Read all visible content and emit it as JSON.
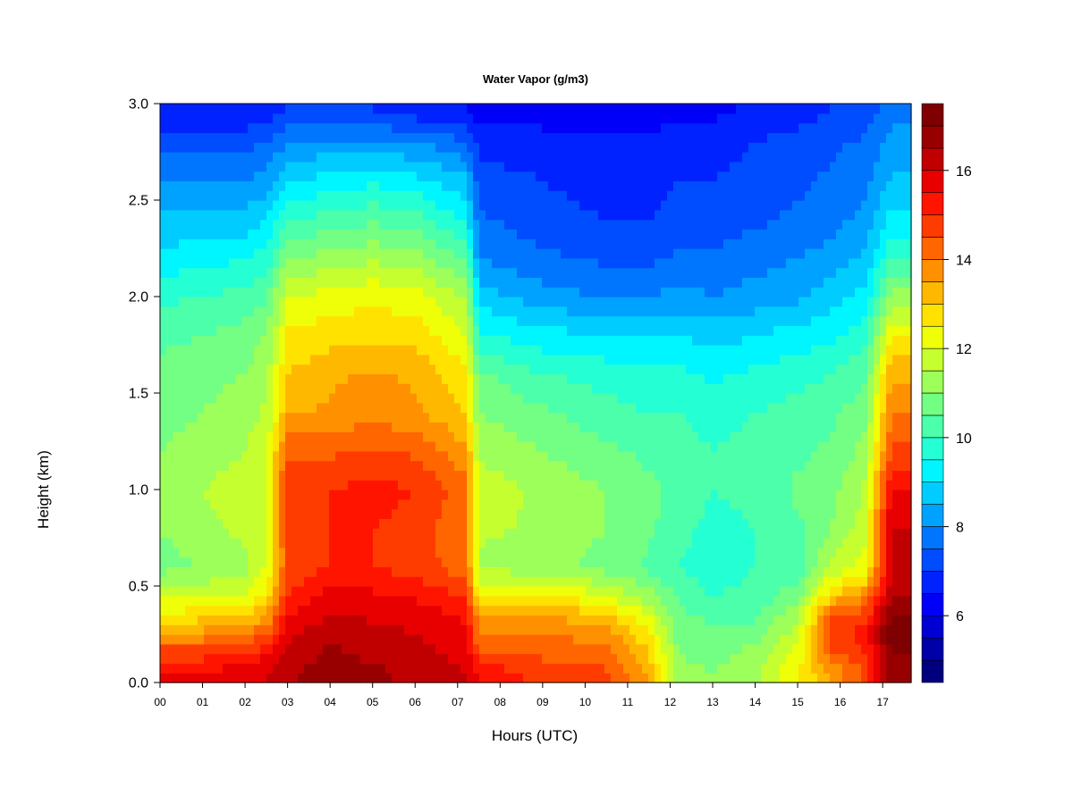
{
  "chart_data": {
    "type": "heatmap",
    "title": "Water Vapor (g/m3)",
    "xlabel": "Hours (UTC)",
    "ylabel": "Height (km)",
    "x_unit": "hours UTC",
    "y_unit": "km",
    "xlim": [
      0,
      17.67
    ],
    "ylim": [
      0,
      3.0
    ],
    "x_ticks": [
      0,
      1,
      2,
      3,
      4,
      5,
      6,
      7,
      8,
      9,
      10,
      11,
      12,
      13,
      14,
      15,
      16,
      17
    ],
    "x_tick_labels": [
      "00",
      "01",
      "02",
      "03",
      "04",
      "05",
      "06",
      "07",
      "08",
      "09",
      "10",
      "11",
      "12",
      "13",
      "14",
      "15",
      "16",
      "17"
    ],
    "y_ticks": [
      0.0,
      0.5,
      1.0,
      1.5,
      2.0,
      2.5,
      3.0
    ],
    "y_tick_labels": [
      "0.0",
      "0.5",
      "1.0",
      "1.5",
      "2.0",
      "2.5",
      "3.0"
    ],
    "colorbar": {
      "range": [
        4.5,
        17.5
      ],
      "step": 0.5,
      "tick_values": [
        6,
        8,
        10,
        12,
        14,
        16
      ],
      "tick_labels": [
        "6",
        "8",
        "10",
        "12",
        "14",
        "16"
      ],
      "colors": [
        "#00007f",
        "#0000a8",
        "#0000d2",
        "#0000f8",
        "#0022ff",
        "#004cff",
        "#0076ff",
        "#00a2ff",
        "#00ccff",
        "#00f6ff",
        "#24ffd3",
        "#4cffaa",
        "#72ff84",
        "#9cff5a",
        "#c6ff30",
        "#eeff08",
        "#ffe200",
        "#ffb800",
        "#ff9000",
        "#ff6600",
        "#ff3c00",
        "#ff1400",
        "#e80000",
        "#c00000",
        "#980000",
        "#7f0000"
      ]
    },
    "heights_km": [
      0.05,
      0.15,
      0.25,
      0.35,
      0.45,
      0.6,
      0.8,
      1.0,
      1.2,
      1.4,
      1.6,
      1.8,
      2.0,
      2.2,
      2.4,
      2.6,
      2.8,
      2.95
    ],
    "profiles": [
      {
        "hour": 0.0,
        "values": [
          15.5,
          14.8,
          13.6,
          12.6,
          11.8,
          10.8,
          11.0,
          11.2,
          11.0,
          10.8,
          10.6,
          10.4,
          9.9,
          9.2,
          8.6,
          8.0,
          7.3,
          6.5
        ]
      },
      {
        "hour": 1.0,
        "values": [
          15.6,
          14.8,
          13.7,
          12.8,
          11.9,
          11.0,
          11.4,
          11.5,
          11.3,
          11.0,
          10.8,
          10.5,
          10.0,
          9.3,
          8.6,
          8.0,
          7.4,
          6.6
        ]
      },
      {
        "hour": 2.0,
        "values": [
          15.8,
          15.0,
          14.0,
          13.0,
          12.0,
          11.4,
          11.6,
          11.7,
          11.5,
          11.3,
          11.0,
          10.7,
          10.2,
          9.5,
          8.7,
          8.0,
          7.3,
          6.6
        ]
      },
      {
        "hour": 2.5,
        "values": [
          16.0,
          15.4,
          14.5,
          13.4,
          12.6,
          12.0,
          12.0,
          12.0,
          11.8,
          11.6,
          11.4,
          11.0,
          10.4,
          9.7,
          9.0,
          8.2,
          7.5,
          6.8
        ]
      },
      {
        "hour": 3.0,
        "values": [
          16.4,
          16.2,
          15.9,
          15.4,
          15.0,
          14.6,
          14.8,
          15.0,
          14.4,
          13.4,
          13.0,
          12.6,
          12.0,
          11.0,
          10.0,
          9.0,
          8.0,
          7.0
        ]
      },
      {
        "hour": 4.0,
        "values": [
          16.8,
          16.6,
          16.4,
          16.0,
          15.8,
          15.0,
          15.0,
          15.0,
          14.4,
          13.6,
          13.4,
          12.8,
          12.2,
          11.2,
          10.2,
          9.2,
          8.2,
          7.0
        ]
      },
      {
        "hour": 5.0,
        "values": [
          16.6,
          16.4,
          16.2,
          15.9,
          15.6,
          15.0,
          15.0,
          15.2,
          14.6,
          13.8,
          13.6,
          12.8,
          12.4,
          11.4,
          10.4,
          9.4,
          8.2,
          7.0
        ]
      },
      {
        "hour": 6.0,
        "values": [
          16.4,
          16.2,
          16.0,
          15.8,
          15.4,
          14.8,
          14.8,
          15.0,
          14.4,
          13.6,
          13.4,
          12.8,
          12.2,
          11.2,
          10.2,
          9.2,
          8.0,
          6.8
        ]
      },
      {
        "hour": 7.2,
        "values": [
          16.0,
          15.8,
          15.6,
          15.4,
          15.0,
          14.2,
          14.0,
          14.2,
          13.6,
          13.0,
          12.6,
          12.0,
          11.4,
          10.4,
          9.4,
          8.6,
          7.6,
          6.6
        ]
      },
      {
        "hour": 7.5,
        "values": [
          15.4,
          14.6,
          14.0,
          13.6,
          12.4,
          11.4,
          11.6,
          11.8,
          11.4,
          11.0,
          10.6,
          9.6,
          8.8,
          8.0,
          7.6,
          7.2,
          6.8,
          6.2
        ]
      },
      {
        "hour": 9.0,
        "values": [
          14.8,
          14.4,
          14.0,
          13.6,
          12.6,
          11.2,
          11.4,
          11.4,
          11.0,
          10.6,
          10.0,
          9.2,
          8.2,
          7.6,
          7.2,
          7.0,
          6.8,
          6.2
        ]
      },
      {
        "hour": 10.5,
        "values": [
          14.6,
          14.2,
          13.8,
          13.0,
          12.0,
          10.8,
          11.0,
          11.0,
          10.6,
          10.2,
          9.8,
          9.0,
          8.0,
          7.4,
          7.0,
          6.8,
          6.6,
          6.2
        ]
      },
      {
        "hour": 11.5,
        "values": [
          13.4,
          13.0,
          12.6,
          12.0,
          11.2,
          10.4,
          10.6,
          10.6,
          10.4,
          10.0,
          9.6,
          9.0,
          8.0,
          7.4,
          7.0,
          6.8,
          6.6,
          6.2
        ]
      },
      {
        "hour": 12.2,
        "values": [
          11.2,
          11.0,
          10.8,
          10.6,
          10.4,
          10.0,
          10.2,
          10.4,
          10.2,
          10.0,
          9.6,
          9.0,
          8.2,
          7.6,
          7.2,
          7.0,
          6.8,
          6.4
        ]
      },
      {
        "hour": 13.0,
        "values": [
          11.0,
          10.8,
          10.6,
          10.4,
          10.0,
          9.6,
          9.8,
          10.0,
          10.0,
          9.8,
          9.4,
          8.8,
          8.0,
          7.6,
          7.2,
          7.0,
          6.8,
          6.4
        ]
      },
      {
        "hour": 14.0,
        "values": [
          11.4,
          11.2,
          10.8,
          10.4,
          10.2,
          10.0,
          10.0,
          10.2,
          10.2,
          10.0,
          9.6,
          9.0,
          8.2,
          7.8,
          7.4,
          7.2,
          7.0,
          6.6
        ]
      },
      {
        "hour": 15.0,
        "values": [
          12.4,
          12.2,
          11.8,
          11.4,
          10.8,
          10.2,
          10.4,
          10.6,
          10.4,
          10.2,
          9.8,
          9.2,
          8.4,
          8.0,
          7.6,
          7.4,
          7.2,
          6.8
        ]
      },
      {
        "hour": 15.8,
        "values": [
          13.6,
          14.4,
          14.8,
          14.4,
          13.0,
          11.6,
          11.0,
          10.8,
          10.6,
          10.4,
          10.0,
          9.4,
          8.8,
          8.2,
          7.8,
          7.6,
          7.4,
          7.0
        ]
      },
      {
        "hour": 16.6,
        "values": [
          14.6,
          15.0,
          15.2,
          14.8,
          13.8,
          12.2,
          11.8,
          11.6,
          11.2,
          10.8,
          10.4,
          9.8,
          9.2,
          8.6,
          8.2,
          7.8,
          7.6,
          7.2
        ]
      },
      {
        "hour": 17.2,
        "values": [
          16.8,
          17.0,
          17.4,
          17.0,
          16.4,
          16.0,
          16.0,
          15.6,
          14.6,
          14.0,
          13.4,
          12.4,
          11.2,
          10.0,
          9.2,
          8.6,
          8.2,
          7.8
        ]
      },
      {
        "hour": 17.67,
        "values": [
          16.8,
          17.0,
          17.4,
          17.0,
          16.4,
          16.0,
          16.0,
          15.6,
          14.6,
          14.0,
          13.4,
          12.4,
          11.2,
          10.0,
          9.2,
          8.6,
          8.2,
          7.8
        ]
      }
    ]
  }
}
